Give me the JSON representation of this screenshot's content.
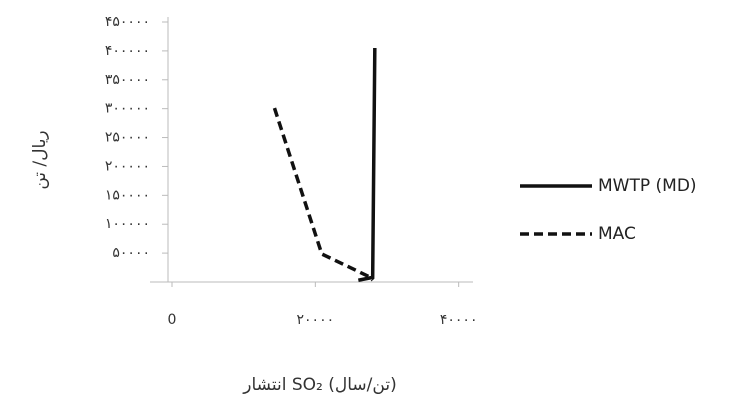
{
  "chart_data": {
    "type": "line",
    "y_label": "ریال/ تن",
    "x_label": "انتشار SO₂ (تن/سال)",
    "xlim": [
      0,
      42000
    ],
    "xticks": [
      0,
      {
        "value": 20000,
        "label": "۲۰۰۰۰"
      },
      {
        "value": 40000,
        "label": "۴۰۰۰۰"
      }
    ],
    "ylim": [
      0,
      450000
    ],
    "yticks": [
      {
        "value": 50000,
        "label": "۵۰۰۰۰"
      },
      {
        "value": 100000,
        "label": "۱۰۰۰۰۰"
      },
      {
        "value": 150000,
        "label": "۱۵۰۰۰۰"
      },
      {
        "value": 200000,
        "label": "۲۰۰۰۰۰"
      },
      {
        "value": 250000,
        "label": "۲۵۰۰۰۰"
      },
      {
        "value": 300000,
        "label": "۳۰۰۰۰۰"
      },
      {
        "value": 350000,
        "label": "۳۵۰۰۰۰"
      },
      {
        "value": 400000,
        "label": "۴۰۰۰۰۰"
      },
      {
        "value": 450000,
        "label": "۴۵۰۰۰۰"
      }
    ],
    "legend": "right",
    "series": [
      {
        "name": "MWTP (MD)",
        "color": "#111111",
        "dash": "solid",
        "x": [
          26000,
          28000,
          28300
        ],
        "values": [
          3000,
          8000,
          405000
        ]
      },
      {
        "name": "MAC",
        "color": "#111111",
        "dash": "dashed",
        "x": [
          14300,
          20900,
          27600,
          28000
        ],
        "values": [
          301000,
          48500,
          8700,
          3000
        ]
      }
    ]
  }
}
